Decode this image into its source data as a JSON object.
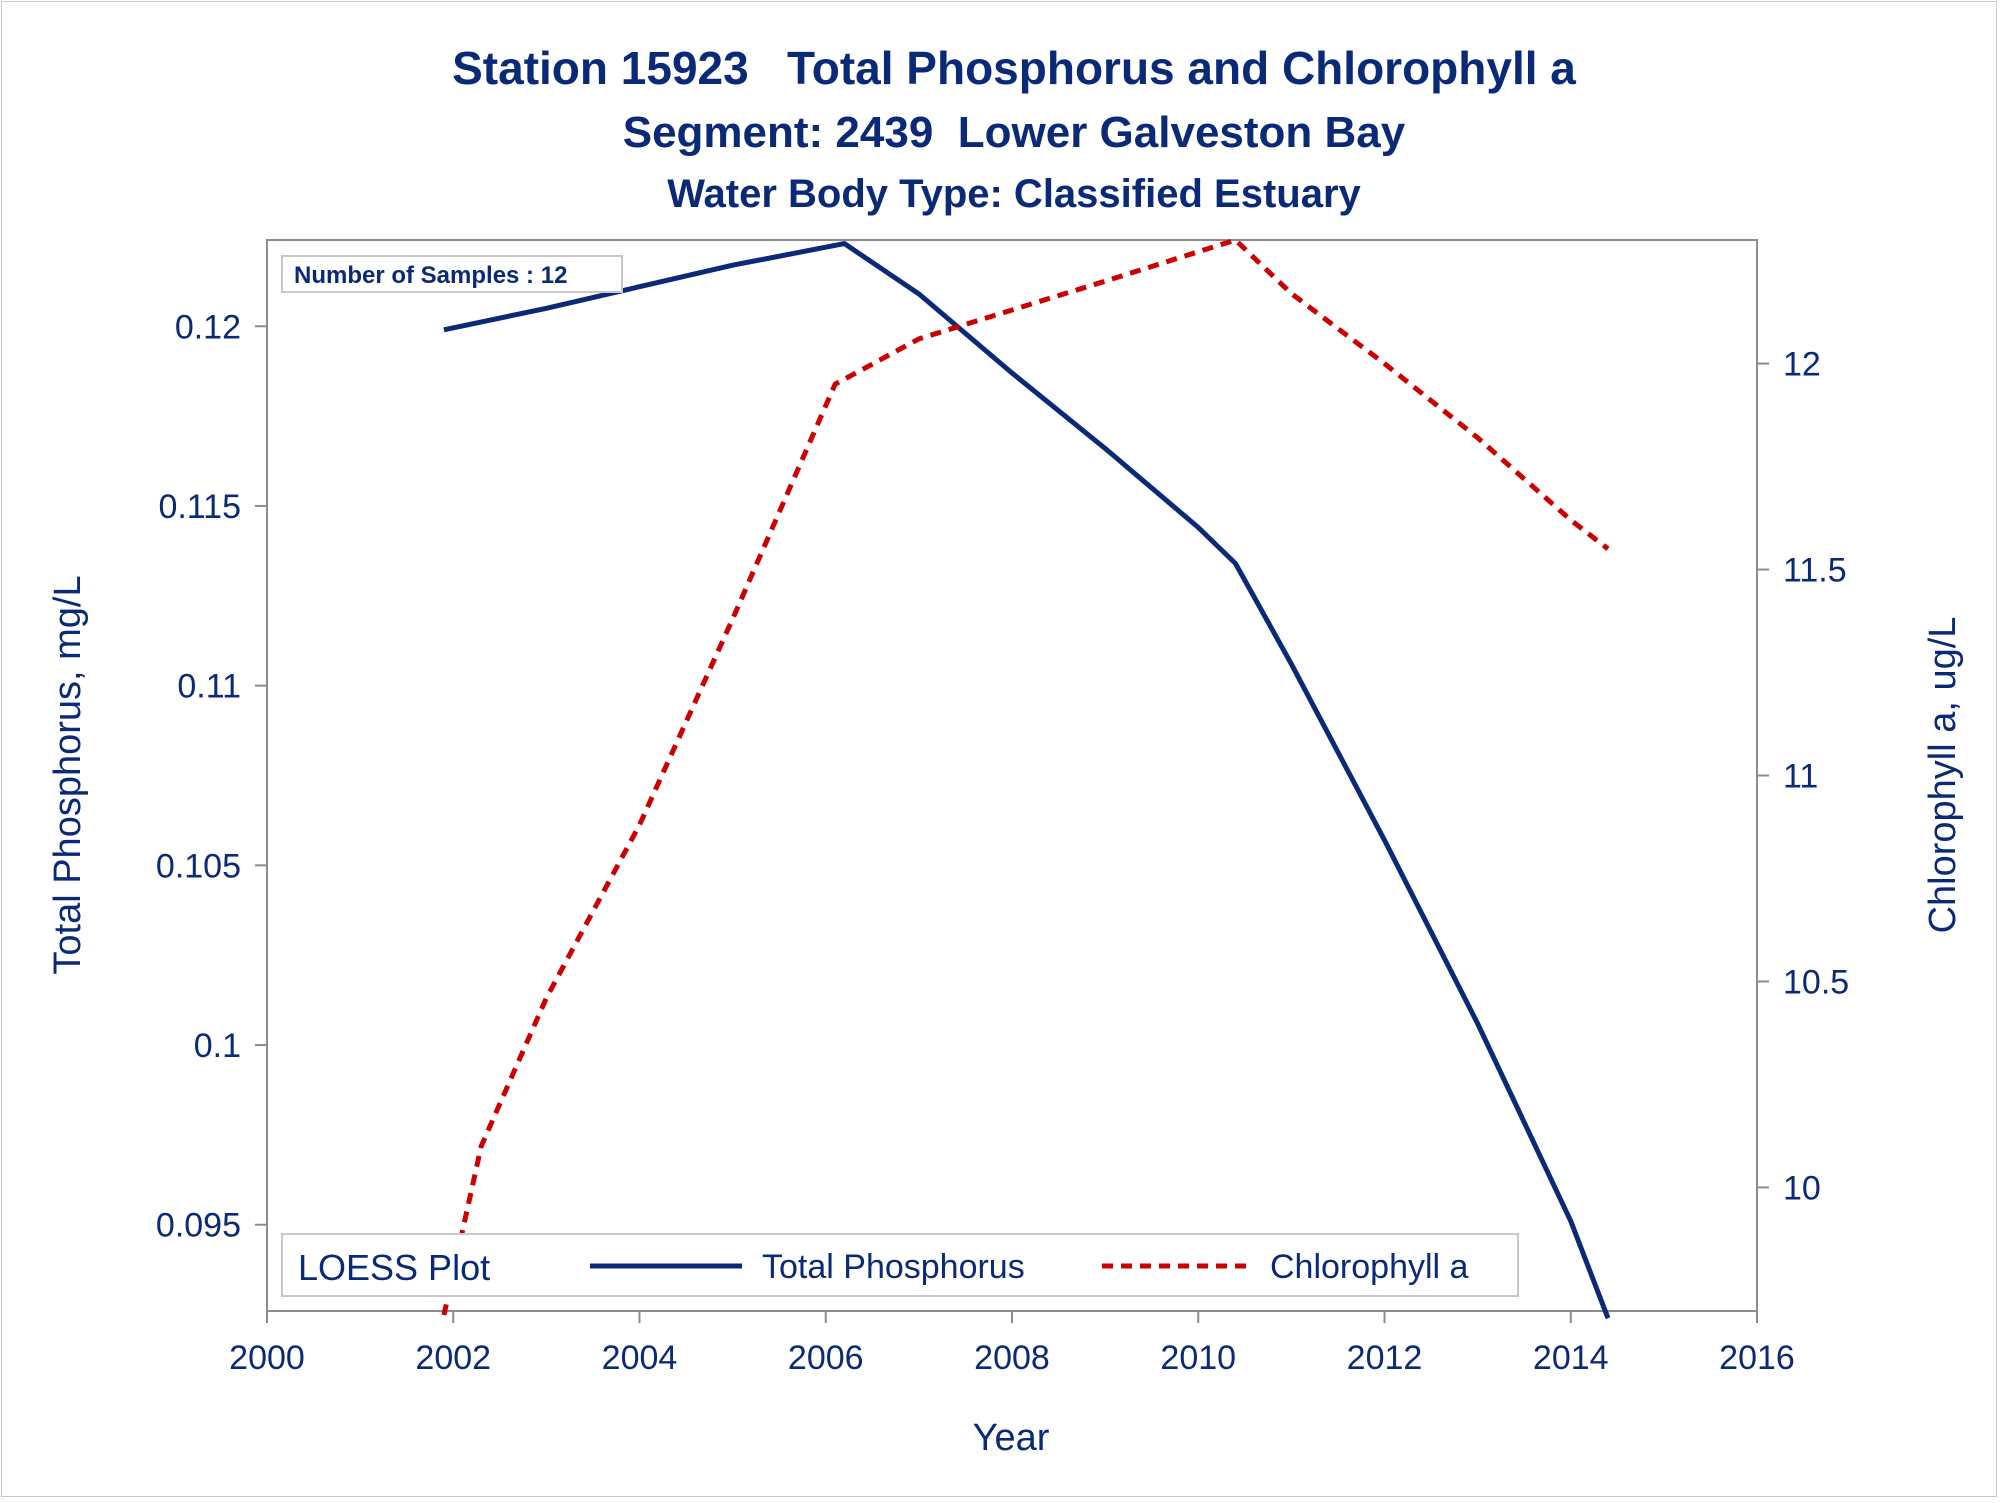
{
  "chart_data": {
    "type": "line",
    "title": "Station 15923   Total Phosphorus and Chlorophyll a",
    "subtitle": "Segment: 2439  Lower Galveston Bay",
    "subtitle2": "Water Body Type: Classified Estuary",
    "xlabel": "Year",
    "ylabel_left": "Total Phosphorus, mg/L",
    "ylabel_right": "Chlorophyll a, ug/L",
    "xlim": [
      2000,
      2016
    ],
    "ylim_left": [
      0.0926,
      0.1224
    ],
    "ylim_right": [
      9.7,
      12.3
    ],
    "x_ticks": [
      2000,
      2002,
      2004,
      2006,
      2008,
      2010,
      2012,
      2014,
      2016
    ],
    "x_tick_labels": [
      "2000",
      "2002",
      "2004",
      "2006",
      "2008",
      "2010",
      "2012",
      "2014",
      "2016"
    ],
    "y_left_ticks": [
      0.095,
      0.1,
      0.105,
      0.11,
      0.115,
      0.12
    ],
    "y_left_tick_labels": [
      "0.095",
      "0.1",
      "0.105",
      "0.11",
      "0.115",
      "0.12"
    ],
    "y_right_ticks": [
      10,
      10.5,
      11,
      11.5,
      12
    ],
    "y_right_tick_labels": [
      "10",
      "10.5",
      "11",
      "11.5",
      "12"
    ],
    "inset_note": "Number of Samples : 12",
    "legend": {
      "title": "LOESS Plot",
      "position": "bottom-inside"
    },
    "grid": false,
    "colors": {
      "text": "#0a2a78",
      "tp": "#0a2a78",
      "chl": "#cc0000",
      "axis": "#8c8c8c"
    },
    "series": [
      {
        "name": "Total Phosphorus",
        "axis": "left",
        "style": "solid",
        "x": [
          2001.9,
          2003,
          2004,
          2005,
          2006.2,
          2007,
          2008,
          2009,
          2010,
          2010.4,
          2011,
          2012,
          2013,
          2014,
          2014.4
        ],
        "y": [
          0.1199,
          0.1205,
          0.1211,
          0.1217,
          0.1223,
          0.1209,
          0.1187,
          0.1166,
          0.1144,
          0.1134,
          0.1106,
          0.1057,
          0.1006,
          0.0951,
          0.0924
        ]
      },
      {
        "name": "Chlorophyll a",
        "axis": "right",
        "style": "dashed",
        "x": [
          2001.9,
          2002.3,
          2003,
          2004,
          2005,
          2006.1,
          2007,
          2008,
          2009,
          2010.4,
          2011,
          2012,
          2013,
          2014,
          2014.4
        ],
        "y": [
          9.69,
          10.1,
          10.46,
          10.88,
          11.38,
          11.95,
          12.06,
          12.13,
          12.2,
          12.3,
          12.17,
          12.0,
          11.82,
          11.62,
          11.55
        ]
      }
    ]
  }
}
